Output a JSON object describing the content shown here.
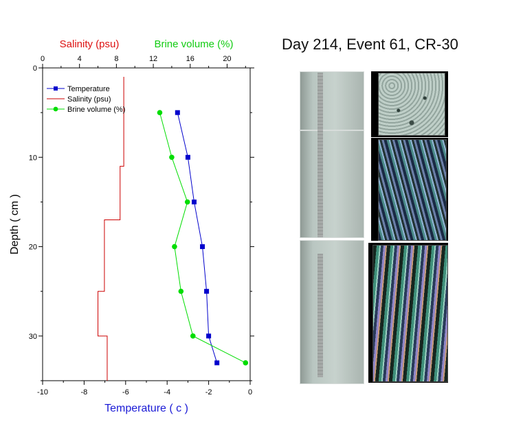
{
  "chart_data": {
    "type": "line",
    "title": "",
    "y_axis": {
      "label": "Depth ( cm )",
      "range": [
        0,
        35
      ],
      "ticks": [
        0,
        10,
        20,
        30
      ],
      "inverted": true
    },
    "x_axis_bottom": {
      "label": "Temperature ( c )",
      "range": [
        -10,
        0
      ],
      "ticks": [
        -10,
        -8,
        -6,
        -4,
        -2,
        0
      ],
      "label_color": "#1a1ad6"
    },
    "x_axis_top": {
      "range": [
        0,
        22.5
      ],
      "ticks": [
        0,
        4,
        8,
        12,
        16,
        20
      ],
      "label_salinity": "Salinity (psu)",
      "label_salinity_color": "#dd1111",
      "label_brine": "Brine volume (%)",
      "label_brine_color": "#11cc11"
    },
    "series": [
      {
        "name": "Temperature",
        "axis": "bottom",
        "color": "#0000cc",
        "marker": "square",
        "points": [
          [
            -3.5,
            5
          ],
          [
            -3.0,
            10
          ],
          [
            -2.7,
            15
          ],
          [
            -2.3,
            20
          ],
          [
            -2.1,
            25
          ],
          [
            -2.0,
            30
          ],
          [
            -1.6,
            33
          ]
        ]
      },
      {
        "name": "Salinity (psu)",
        "axis": "top",
        "color": "#cc0000",
        "marker": "none",
        "step": true,
        "points": [
          [
            8.8,
            1
          ],
          [
            8.8,
            11
          ],
          [
            8.4,
            11
          ],
          [
            8.4,
            17
          ],
          [
            6.7,
            17
          ],
          [
            6.7,
            25
          ],
          [
            6.0,
            25
          ],
          [
            6.0,
            30
          ],
          [
            7.0,
            30
          ],
          [
            7.0,
            35
          ]
        ]
      },
      {
        "name": "Brine volume (%)",
        "axis": "top",
        "color": "#00dd00",
        "marker": "circle",
        "points": [
          [
            12.7,
            5
          ],
          [
            14.0,
            10
          ],
          [
            15.7,
            15
          ],
          [
            14.3,
            20
          ],
          [
            15.0,
            25
          ],
          [
            16.3,
            30
          ],
          [
            22.0,
            33
          ]
        ]
      }
    ],
    "legend": {
      "placement": "top-left",
      "entries": [
        "Temperature",
        "Salinity (psu)",
        "Brine volume (%)"
      ]
    }
  },
  "core_title": "Day 214, Event 61, CR-30"
}
